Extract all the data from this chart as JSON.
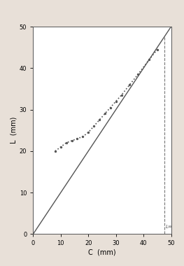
{
  "title": "",
  "xlabel": "C  (mm)",
  "ylabel": "L  (mm)",
  "xlim": [
    0,
    50
  ],
  "ylim": [
    0,
    50
  ],
  "xticks": [
    0,
    10,
    20,
    30,
    40,
    50
  ],
  "yticks": [
    0,
    10,
    20,
    30,
    40,
    50
  ],
  "identity_line": {
    "x": [
      0,
      50
    ],
    "y": [
      0,
      50
    ],
    "color": "#555555",
    "lw": 1.0
  },
  "L_inf": 47.5,
  "L_inf_label": "L∞",
  "dot_points_x": [
    8,
    10,
    12,
    14,
    16,
    18,
    20,
    22,
    24,
    26,
    28,
    30,
    32,
    35,
    38,
    42,
    45
  ],
  "dot_points_y": [
    20,
    21,
    22,
    22.5,
    23,
    23.5,
    24.5,
    26,
    27.5,
    29,
    30.5,
    32,
    33.5,
    36,
    38.5,
    42,
    44.5
  ],
  "dot_color": "#555555",
  "dot_size": 8,
  "bg_color": "#f5f0ec",
  "plot_bg": "#ffffff",
  "fig_bg": "#e8e0d8"
}
